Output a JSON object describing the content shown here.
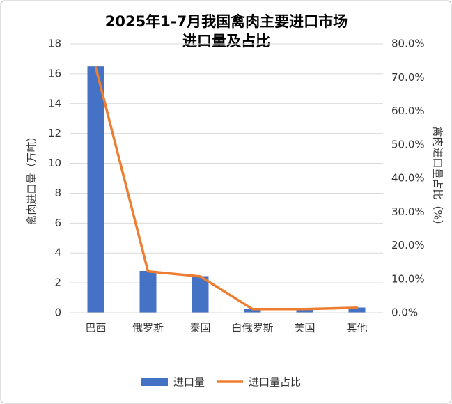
{
  "chart_data": {
    "type": "bar-line",
    "title": [
      "2025年1-7月我国禽肉主要进口市场",
      "进口量及占比"
    ],
    "y_label": "禽肉进口量（万吨）",
    "y2_label": "禽肉进口量占比（%）",
    "categories": [
      "巴西",
      "俄罗斯",
      "泰国",
      "白俄罗斯",
      "美国",
      "其他"
    ],
    "series": [
      {
        "name": "进口量",
        "type": "bar",
        "color": "#4472c4",
        "values": [
          16.5,
          2.8,
          2.45,
          0.25,
          0.25,
          0.35
        ]
      },
      {
        "name": "进口量占比",
        "type": "line",
        "axis": "y2",
        "color": "#ed7d31",
        "values": [
          73.0,
          12.3,
          10.8,
          1.1,
          1.1,
          1.5
        ]
      }
    ],
    "ylim": [
      0,
      18
    ],
    "yticks": [
      0,
      2,
      4,
      6,
      8,
      10,
      12,
      14,
      16,
      18
    ],
    "y2lim": [
      0,
      80
    ],
    "y2ticks": [
      {
        "value": 0,
        "label": "0.0%"
      },
      {
        "value": 10,
        "label": "10.0%"
      },
      {
        "value": 20,
        "label": "20.0%"
      },
      {
        "value": 30,
        "label": "30.0%"
      },
      {
        "value": 40,
        "label": "40.0%"
      },
      {
        "value": 50,
        "label": "50.0%"
      },
      {
        "value": 60,
        "label": "60.0%"
      },
      {
        "value": 70,
        "label": "70.0%"
      },
      {
        "value": 80,
        "label": "80.0%"
      }
    ],
    "grid": true,
    "legend": "bottom"
  }
}
